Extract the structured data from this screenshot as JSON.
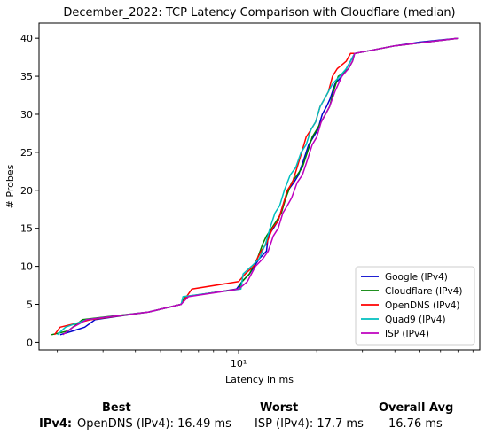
{
  "chart_data": {
    "type": "line",
    "title": "December_2022: TCP Latency Comparison with Cloudflare (median)",
    "xlabel": "Latency in ms",
    "ylabel": "# Probes",
    "xscale": "log",
    "xlim": [
      1.7,
      85
    ],
    "ylim": [
      -1,
      42
    ],
    "xticks": [
      {
        "value": 10,
        "label": "10¹"
      }
    ],
    "yticks": [
      0,
      5,
      10,
      15,
      20,
      25,
      30,
      35,
      40
    ],
    "grid": false,
    "legend_position": "lower-right",
    "series": [
      {
        "name": "Google (IPv4)",
        "color": "#0000cc",
        "x": [
          2.05,
          2.3,
          2.55,
          2.8,
          4.5,
          6.0,
          6.3,
          9.8,
          10.3,
          11.0,
          12.0,
          12.8,
          13.0,
          13.6,
          14.2,
          14.8,
          15.5,
          16.3,
          17.0,
          17.8,
          18.6,
          19.4,
          20.2,
          21.0,
          21.8,
          22.5,
          23.5,
          25.0,
          26.0,
          27.0,
          28.0,
          40.0,
          50.0,
          70.0
        ],
        "y": [
          1,
          1.5,
          2,
          3,
          4,
          5,
          6,
          7,
          8,
          9,
          11,
          12,
          14,
          15,
          16,
          18,
          20,
          21,
          22,
          24,
          26,
          27,
          28,
          30,
          31,
          32,
          34,
          35,
          36,
          37,
          38,
          39,
          39.5,
          40
        ]
      },
      {
        "name": "Cloudflare (IPv4)",
        "color": "#008000",
        "x": [
          1.9,
          2.2,
          2.5,
          4.5,
          6.0,
          6.2,
          10.0,
          10.3,
          11.0,
          11.8,
          12.4,
          12.8,
          13.4,
          14.0,
          14.6,
          15.2,
          16.0,
          16.8,
          17.6,
          18.4,
          19.2,
          20.0,
          20.8,
          21.6,
          22.4,
          23.2,
          24.2,
          25.5,
          26.5,
          27.5,
          28.0,
          40.0,
          70.0
        ],
        "y": [
          1,
          1.5,
          3,
          4,
          5,
          6,
          7,
          8,
          9,
          11,
          13,
          14,
          15,
          16,
          17,
          19,
          21,
          22,
          23,
          25,
          27,
          28,
          29,
          30,
          31,
          33,
          35,
          35.5,
          36,
          37,
          38,
          39,
          40
        ]
      },
      {
        "name": "OpenDNS (IPv4)",
        "color": "#ff0000",
        "x": [
          1.95,
          2.05,
          2.7,
          4.5,
          6.0,
          6.6,
          10.0,
          10.6,
          11.4,
          12.2,
          12.8,
          13.5,
          14.2,
          14.8,
          15.4,
          16.1,
          16.8,
          17.5,
          18.2,
          19.0,
          19.8,
          20.6,
          21.4,
          22.2,
          23.0,
          24.0,
          25.0,
          26.0,
          27.0,
          28.0,
          40.0,
          70.0
        ],
        "y": [
          1,
          2,
          3,
          4,
          5,
          7,
          8,
          9,
          10,
          12,
          13,
          15,
          16,
          18,
          20,
          21,
          23,
          25,
          27,
          28,
          29,
          31,
          32,
          33,
          35,
          36,
          36.5,
          37,
          38,
          38,
          39,
          40
        ]
      },
      {
        "name": "Quad9 (IPv4)",
        "color": "#00bfbf",
        "x": [
          2.0,
          2.15,
          2.6,
          4.5,
          6.0,
          6.1,
          10.2,
          10.4,
          11.2,
          12.0,
          12.7,
          13.2,
          13.8,
          14.4,
          15.0,
          15.8,
          16.6,
          17.4,
          18.2,
          19.0,
          19.8,
          20.6,
          21.4,
          22.2,
          23.0,
          24.5,
          26.0,
          27.0,
          28.0,
          40.0,
          70.0
        ],
        "y": [
          1,
          2,
          3,
          4,
          5,
          6,
          7,
          9,
          10,
          11,
          13,
          15,
          17,
          18,
          20,
          22,
          23,
          25,
          26,
          28,
          29,
          31,
          32,
          33,
          34,
          35,
          36,
          37,
          38,
          39,
          40
        ]
      },
      {
        "name": "ISP (IPv4)",
        "color": "#bf00bf",
        "x": [
          2.1,
          2.3,
          2.6,
          4.5,
          6.0,
          6.4,
          10.0,
          10.8,
          11.6,
          12.4,
          13.0,
          13.6,
          14.2,
          14.8,
          15.4,
          16.0,
          16.8,
          17.6,
          18.4,
          19.2,
          20.0,
          20.8,
          21.6,
          22.4,
          23.5,
          25.0,
          26.5,
          27.5,
          28.0,
          40.0,
          70.0
        ],
        "y": [
          1,
          2,
          3,
          4,
          5,
          6,
          7,
          8,
          10,
          11,
          12,
          14,
          15,
          17,
          18,
          19,
          21,
          22,
          24,
          26,
          27,
          29,
          30,
          31,
          33,
          35,
          36,
          37,
          38,
          39,
          40
        ]
      }
    ]
  },
  "summary": {
    "best_header": "Best",
    "worst_header": "Worst",
    "avg_header": "Overall Avg",
    "row_label": "IPv4:",
    "best_value": "OpenDNS (IPv4): 16.49 ms",
    "worst_value": "ISP (IPv4): 17.7 ms",
    "avg_value": "16.76 ms"
  }
}
